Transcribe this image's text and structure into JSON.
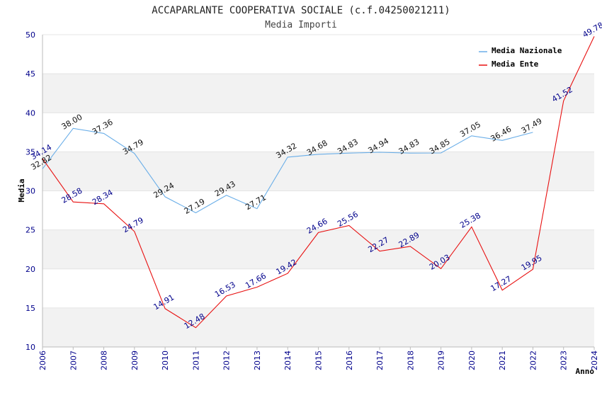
{
  "chart_data": {
    "type": "line",
    "title": "ACCAPARLANTE COOPERATIVA SOCIALE (c.f.04250021211)",
    "subtitle": "Media Importi",
    "xlabel": "Anno",
    "ylabel": "Media",
    "ylim": [
      10,
      50
    ],
    "y_ticks": [
      "10",
      "15",
      "20",
      "25",
      "30",
      "35",
      "40",
      "45",
      "50"
    ],
    "grid": "horizontal bands",
    "legend_position": "top-right",
    "x": [
      "2006",
      "2007",
      "2008",
      "2009",
      "2010",
      "2011",
      "2012",
      "2013",
      "2014",
      "2015",
      "2016",
      "2017",
      "2018",
      "2019",
      "2020",
      "2021",
      "2022",
      "2023",
      "2024"
    ],
    "series": [
      {
        "name": "Media Nazionale",
        "color": "#6aaee8",
        "values": [
          32.82,
          38.0,
          37.36,
          34.79,
          29.24,
          27.19,
          29.43,
          27.71,
          34.32,
          34.68,
          34.83,
          34.94,
          34.83,
          34.85,
          37.05,
          36.46,
          37.49,
          null,
          null
        ],
        "labels": [
          "32.82",
          "38.00",
          "37.36",
          "34.79",
          "29.24",
          "27.19",
          "29.43",
          "27.71",
          "34.32",
          "34.68",
          "34.83",
          "34.94",
          "34.83",
          "34.85",
          "37.05",
          "36.46",
          "37.49",
          "",
          ""
        ]
      },
      {
        "name": "Media Ente",
        "color": "#e81010",
        "values": [
          34.14,
          28.58,
          28.34,
          24.79,
          14.91,
          12.48,
          16.53,
          17.66,
          19.42,
          24.66,
          25.56,
          22.27,
          22.89,
          20.03,
          25.38,
          17.27,
          19.95,
          41.52,
          49.78
        ],
        "labels": [
          "34.14",
          "28.58",
          "28.34",
          "24.79",
          "14.91",
          "12.48",
          "16.53",
          "17.66",
          "19.42",
          "24.66",
          "25.56",
          "22.27",
          "22.89",
          "20.03",
          "25.38",
          "17.27",
          "19.95",
          "41.52",
          "49.78"
        ]
      }
    ]
  },
  "colors": {
    "band": "#f2f2f2",
    "axis": "#bbbbbb",
    "tick_text": "#00008b"
  }
}
